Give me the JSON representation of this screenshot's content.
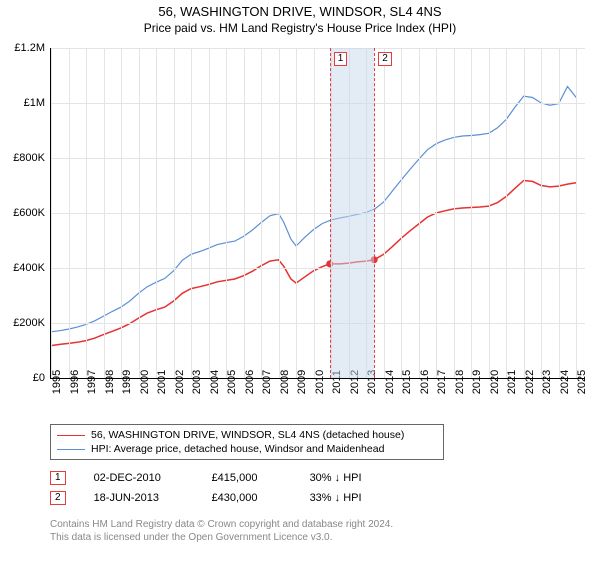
{
  "title": "56, WASHINGTON DRIVE, WINDSOR, SL4 4NS",
  "subtitle": "Price paid vs. HM Land Registry's House Price Index (HPI)",
  "chart": {
    "type": "line",
    "xlim": [
      1995,
      2025.5
    ],
    "ylim": [
      0,
      1200000
    ],
    "y_ticks": [
      0,
      200000,
      400000,
      600000,
      800000,
      1000000,
      1200000
    ],
    "y_tick_labels": [
      "£0",
      "£200K",
      "£400K",
      "£600K",
      "£800K",
      "£1M",
      "£1.2M"
    ],
    "x_ticks": [
      1995,
      1996,
      1997,
      1998,
      1999,
      2000,
      2001,
      2002,
      2003,
      2004,
      2005,
      2006,
      2007,
      2008,
      2009,
      2010,
      2011,
      2012,
      2013,
      2014,
      2015,
      2016,
      2017,
      2018,
      2019,
      2020,
      2021,
      2022,
      2023,
      2024,
      2025
    ],
    "grid_color": "#e4e4e4",
    "background_color": "#ffffff",
    "axis_font_size": 11,
    "series": [
      {
        "name": "property",
        "color": "#e63232",
        "line_width": 1.5,
        "legend_label": "56, WASHINGTON DRIVE, WINDSOR, SL4 4NS (detached house)",
        "data": [
          [
            1995,
            118000
          ],
          [
            1995.5,
            122000
          ],
          [
            1996,
            126000
          ],
          [
            1996.5,
            130000
          ],
          [
            1997,
            136000
          ],
          [
            1997.5,
            145000
          ],
          [
            1998,
            158000
          ],
          [
            1998.5,
            170000
          ],
          [
            1999,
            182000
          ],
          [
            1999.5,
            198000
          ],
          [
            2000,
            218000
          ],
          [
            2000.5,
            236000
          ],
          [
            2001,
            248000
          ],
          [
            2001.5,
            258000
          ],
          [
            2002,
            280000
          ],
          [
            2002.5,
            308000
          ],
          [
            2003,
            325000
          ],
          [
            2003.5,
            332000
          ],
          [
            2004,
            340000
          ],
          [
            2004.5,
            350000
          ],
          [
            2005,
            355000
          ],
          [
            2005.5,
            360000
          ],
          [
            2006,
            372000
          ],
          [
            2006.5,
            388000
          ],
          [
            2007,
            408000
          ],
          [
            2007.5,
            425000
          ],
          [
            2008,
            430000
          ],
          [
            2008.3,
            405000
          ],
          [
            2008.7,
            360000
          ],
          [
            2009,
            345000
          ],
          [
            2009.5,
            368000
          ],
          [
            2010,
            390000
          ],
          [
            2010.5,
            405000
          ],
          [
            2010.92,
            415000
          ],
          [
            2011.5,
            415000
          ],
          [
            2012,
            418000
          ],
          [
            2012.5,
            422000
          ],
          [
            2013,
            425000
          ],
          [
            2013.46,
            430000
          ],
          [
            2014,
            450000
          ],
          [
            2014.5,
            478000
          ],
          [
            2015,
            508000
          ],
          [
            2015.5,
            535000
          ],
          [
            2016,
            560000
          ],
          [
            2016.5,
            585000
          ],
          [
            2017,
            600000
          ],
          [
            2017.5,
            608000
          ],
          [
            2018,
            615000
          ],
          [
            2018.5,
            618000
          ],
          [
            2019,
            620000
          ],
          [
            2019.5,
            622000
          ],
          [
            2020,
            625000
          ],
          [
            2020.5,
            638000
          ],
          [
            2021,
            660000
          ],
          [
            2021.5,
            690000
          ],
          [
            2022,
            718000
          ],
          [
            2022.5,
            715000
          ],
          [
            2023,
            700000
          ],
          [
            2023.5,
            695000
          ],
          [
            2024,
            698000
          ],
          [
            2024.5,
            705000
          ],
          [
            2025,
            710000
          ]
        ]
      },
      {
        "name": "hpi",
        "color": "#5b8fd6",
        "line_width": 1.2,
        "legend_label": "HPI: Average price, detached house, Windsor and Maidenhead",
        "data": [
          [
            1995,
            168000
          ],
          [
            1995.5,
            172000
          ],
          [
            1996,
            178000
          ],
          [
            1996.5,
            185000
          ],
          [
            1997,
            195000
          ],
          [
            1997.5,
            208000
          ],
          [
            1998,
            225000
          ],
          [
            1998.5,
            242000
          ],
          [
            1999,
            258000
          ],
          [
            1999.5,
            280000
          ],
          [
            2000,
            308000
          ],
          [
            2000.5,
            332000
          ],
          [
            2001,
            348000
          ],
          [
            2001.5,
            362000
          ],
          [
            2002,
            390000
          ],
          [
            2002.5,
            428000
          ],
          [
            2003,
            450000
          ],
          [
            2003.5,
            460000
          ],
          [
            2004,
            472000
          ],
          [
            2004.5,
            485000
          ],
          [
            2005,
            492000
          ],
          [
            2005.5,
            498000
          ],
          [
            2006,
            515000
          ],
          [
            2006.5,
            538000
          ],
          [
            2007,
            565000
          ],
          [
            2007.5,
            590000
          ],
          [
            2008,
            598000
          ],
          [
            2008.3,
            565000
          ],
          [
            2008.7,
            505000
          ],
          [
            2009,
            480000
          ],
          [
            2009.5,
            512000
          ],
          [
            2010,
            540000
          ],
          [
            2010.5,
            562000
          ],
          [
            2011,
            575000
          ],
          [
            2011.5,
            582000
          ],
          [
            2012,
            588000
          ],
          [
            2012.5,
            595000
          ],
          [
            2013,
            602000
          ],
          [
            2013.5,
            615000
          ],
          [
            2014,
            640000
          ],
          [
            2014.5,
            680000
          ],
          [
            2015,
            720000
          ],
          [
            2015.5,
            758000
          ],
          [
            2016,
            795000
          ],
          [
            2016.5,
            830000
          ],
          [
            2017,
            852000
          ],
          [
            2017.5,
            865000
          ],
          [
            2018,
            875000
          ],
          [
            2018.5,
            880000
          ],
          [
            2019,
            882000
          ],
          [
            2019.5,
            885000
          ],
          [
            2020,
            890000
          ],
          [
            2020.5,
            910000
          ],
          [
            2021,
            940000
          ],
          [
            2021.5,
            985000
          ],
          [
            2022,
            1025000
          ],
          [
            2022.5,
            1020000
          ],
          [
            2023,
            1000000
          ],
          [
            2023.5,
            992000
          ],
          [
            2024,
            998000
          ],
          [
            2024.5,
            1060000
          ],
          [
            2025,
            1020000
          ]
        ]
      }
    ],
    "sale_band": {
      "start": 2010.92,
      "end": 2013.46,
      "color": "rgba(200,215,235,0.5)"
    },
    "sale_markers": [
      {
        "n": "1",
        "x": 2010.92,
        "y": 415000
      },
      {
        "n": "2",
        "x": 2013.46,
        "y": 430000
      }
    ],
    "marker_color": "#e63232",
    "marker_radius": 3.5
  },
  "sales": [
    {
      "n": "1",
      "date": "02-DEC-2010",
      "price": "£415,000",
      "delta": "30% ↓ HPI"
    },
    {
      "n": "2",
      "date": "18-JUN-2013",
      "price": "£430,000",
      "delta": "33% ↓ HPI"
    }
  ],
  "footnote_line1": "Contains HM Land Registry data © Crown copyright and database right 2024.",
  "footnote_line2": "This data is licensed under the Open Government Licence v3.0."
}
